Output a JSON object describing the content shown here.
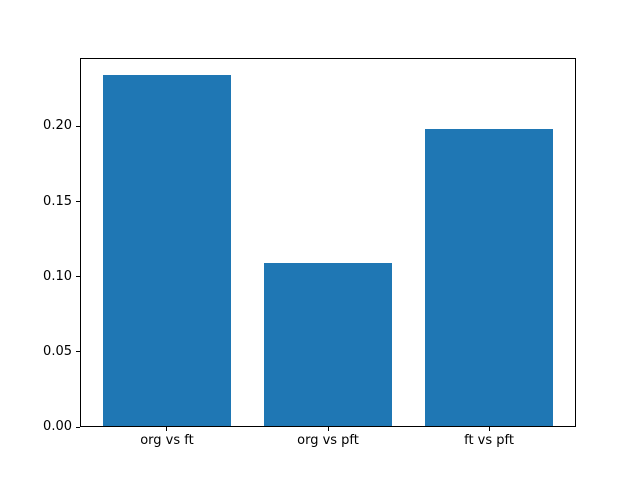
{
  "figure": {
    "background_color": "#ffffff",
    "spine_color": "#000000",
    "tick_text_color": "#000000"
  },
  "chart_data": {
    "type": "bar",
    "title": "",
    "xlabel": "",
    "ylabel": "",
    "categories": [
      "org vs ft",
      "org vs pft",
      "ft vs pft"
    ],
    "values": [
      0.234,
      0.109,
      0.198
    ],
    "bar_color": "#1f77b4",
    "bar_width_fraction": 0.8,
    "ylim": [
      0,
      0.2457
    ],
    "ytick_values": [
      0.0,
      0.05,
      0.1,
      0.15,
      0.2
    ],
    "ytick_labels": [
      "0.00",
      "0.05",
      "0.10",
      "0.15",
      "0.20"
    ],
    "grid": false,
    "legend": null
  }
}
